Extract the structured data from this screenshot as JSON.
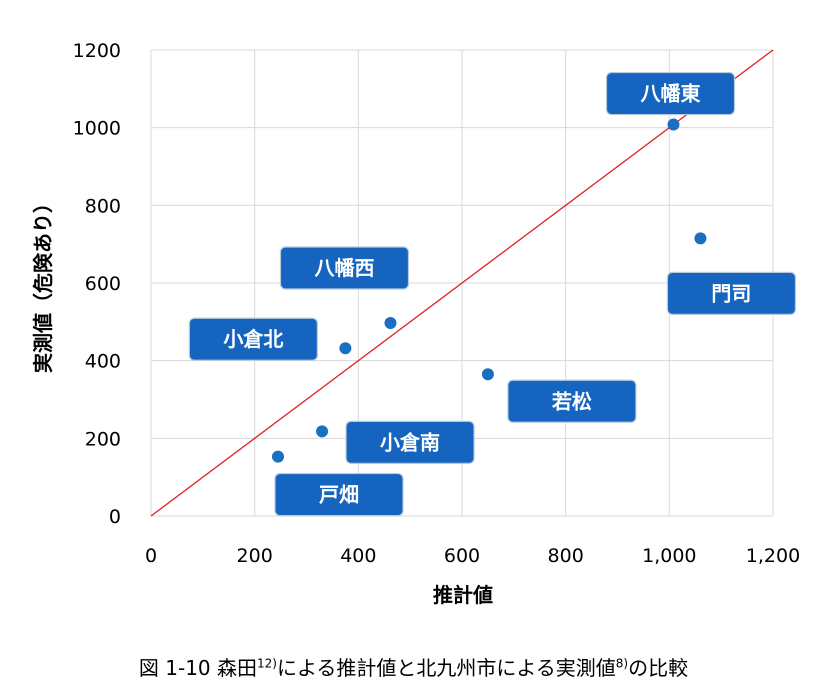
{
  "chart_data": {
    "type": "scatter",
    "xlabel": "推計値",
    "ylabel": "実測値（危険あり）",
    "xlim": [
      0,
      1200
    ],
    "ylim": [
      0,
      1200
    ],
    "x_ticks": [
      0,
      200,
      400,
      600,
      800,
      1000,
      1200
    ],
    "x_tick_labels": [
      "0",
      "200",
      "400",
      "600",
      "800",
      "1,000",
      "1,200"
    ],
    "y_ticks": [
      0,
      200,
      400,
      600,
      800,
      1000,
      1200
    ],
    "y_tick_labels": [
      "0",
      "200",
      "400",
      "600",
      "800",
      "1000",
      "1200"
    ],
    "grid": true,
    "reference_line": {
      "from": [
        0,
        0
      ],
      "to": [
        1200,
        1200
      ],
      "color": "#e02020"
    },
    "marker_color": "#1a6fc2",
    "label_color": "#1565c0",
    "points": [
      {
        "label": "八幡東",
        "x": 1008,
        "y": 1008
      },
      {
        "label": "門司",
        "x": 1060,
        "y": 715
      },
      {
        "label": "八幡西",
        "x": 462,
        "y": 497
      },
      {
        "label": "小倉北",
        "x": 375,
        "y": 432
      },
      {
        "label": "若松",
        "x": 650,
        "y": 365
      },
      {
        "label": "小倉南",
        "x": 330,
        "y": 218
      },
      {
        "label": "戸畑",
        "x": 245,
        "y": 153
      }
    ]
  },
  "caption": {
    "prefix": "図 1-10  森田",
    "ref1": "12)",
    "middle": "による推計値と北九州市による実測値",
    "ref2": "8)",
    "suffix": "の比較"
  }
}
